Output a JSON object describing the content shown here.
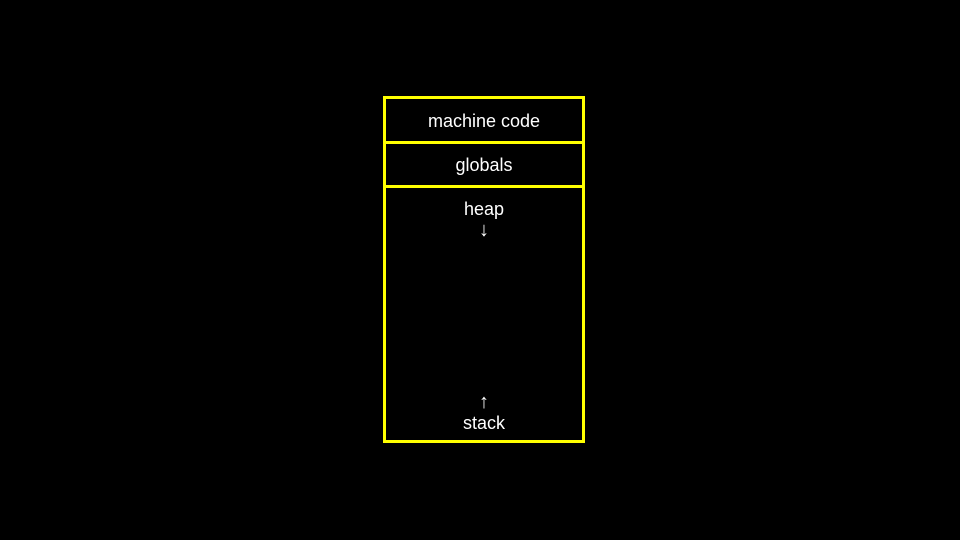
{
  "colors": {
    "background": "#000000",
    "border": "#ffff00",
    "text": "#ffffff"
  },
  "memory_layout": {
    "segments": [
      {
        "label": "machine code"
      },
      {
        "label": "globals"
      }
    ],
    "heap": {
      "label": "heap",
      "arrow": "↓"
    },
    "stack": {
      "label": "stack",
      "arrow": "↑"
    }
  }
}
